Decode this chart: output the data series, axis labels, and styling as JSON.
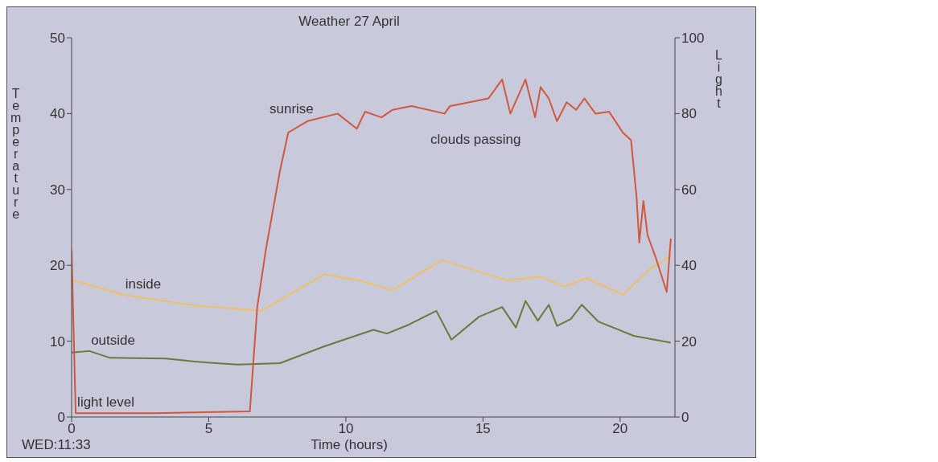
{
  "chart_data": {
    "type": "line",
    "title": "Weather 27 April",
    "xlabel": "Time (hours)",
    "ylabel": "Temperature",
    "y2label": "Light",
    "xlim": [
      0,
      22
    ],
    "xticks": [
      0,
      5,
      10,
      15,
      20
    ],
    "ylim": [
      0,
      50
    ],
    "yticks": [
      0,
      10,
      20,
      30,
      40,
      50
    ],
    "y2lim": [
      0,
      100
    ],
    "y2ticks": [
      0,
      20,
      40,
      60,
      80,
      100
    ],
    "annotations": [
      "sunrise",
      "clouds passing",
      "WED:11:33"
    ],
    "series": [
      {
        "name": "inside",
        "color": "#f0c060",
        "x": [
          0,
          1.9,
          4.5,
          6.9,
          7.6,
          9.2,
          10.5,
          11.7,
          13.5,
          15.9,
          17.1,
          17.95,
          18.8,
          20.1,
          21.05,
          21.85
        ],
        "values": [
          18.1,
          16.1,
          14.7,
          14,
          15.4,
          18.8,
          18,
          16.7,
          20.7,
          18,
          18.5,
          17.2,
          18.3,
          16.1,
          19.4,
          21.2
        ]
      },
      {
        "name": "outside",
        "color": "#6b7a3c",
        "x": [
          0,
          0.65,
          1.4,
          3.45,
          4.5,
          6.05,
          7.6,
          9.2,
          11,
          11.5,
          12.25,
          13.3,
          13.85,
          14.85,
          15.7,
          16.2,
          16.55,
          17,
          17.4,
          17.7,
          18.2,
          18.6,
          19.2,
          20.5,
          21.85
        ],
        "values": [
          8.5,
          8.7,
          7.8,
          7.7,
          7.3,
          6.9,
          7.1,
          9.3,
          11.5,
          11,
          12.1,
          14,
          10.2,
          13.2,
          14.5,
          11.8,
          15.3,
          12.7,
          14.8,
          12,
          12.9,
          14.8,
          12.6,
          10.7,
          9.8
        ]
      },
      {
        "name": "light level",
        "color": "#d0583c",
        "axis": "y2",
        "x": [
          0,
          0.15,
          3,
          6.5,
          6.77,
          7.08,
          7.6,
          7.9,
          8.6,
          9.7,
          10.4,
          10.7,
          11.3,
          11.7,
          12.4,
          13.6,
          13.8,
          15.2,
          15.7,
          16,
          16.55,
          16.9,
          17.1,
          17.4,
          17.7,
          18.05,
          18.4,
          18.7,
          19.1,
          19.6,
          20.1,
          20.4,
          20.6,
          20.7,
          20.85,
          21,
          21.3,
          21.7,
          21.85
        ],
        "values": [
          44,
          1,
          1,
          1.5,
          29,
          44,
          65,
          75,
          78,
          80,
          76,
          80.5,
          79,
          81,
          82,
          80,
          82,
          84,
          89,
          80,
          89,
          79,
          87,
          84,
          78,
          83,
          81,
          84,
          80,
          80.5,
          75,
          73,
          58,
          46,
          57,
          48,
          42,
          33,
          47
        ]
      }
    ]
  }
}
